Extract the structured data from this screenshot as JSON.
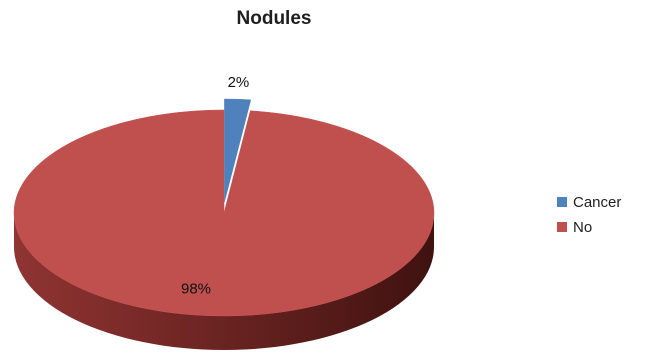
{
  "chart_data": {
    "type": "pie",
    "title": "Nodules",
    "categories": [
      "Cancer",
      "No"
    ],
    "values": [
      2,
      98
    ],
    "data_labels": [
      "2%",
      "98%"
    ],
    "colors": [
      "#4f81bd",
      "#c0504d"
    ],
    "legend_position": "right",
    "style": "3d-exploded"
  }
}
